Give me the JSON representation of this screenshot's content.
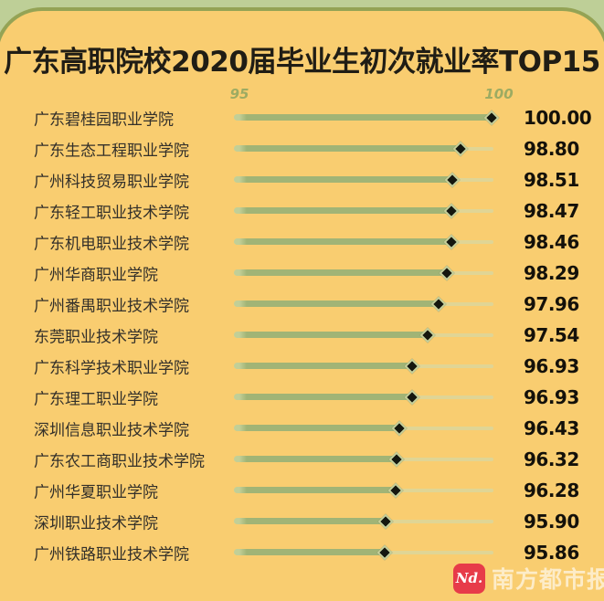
{
  "title": "广东高职院校2020届毕业生初次就业率TOP15",
  "axis": {
    "tick_low": "95",
    "tick_high": "100"
  },
  "chart_data": {
    "type": "bar",
    "orientation": "horizontal",
    "marker": "diamond",
    "title": "广东高职院校2020届毕业生初次就业率TOP15",
    "xlabel": "",
    "ylabel": "",
    "ticks": [
      95,
      100
    ],
    "implied_axis_min": 90,
    "implied_axis_max": 100,
    "grid": false,
    "legend": false,
    "categories": [
      "广东碧桂园职业学院",
      "广东生态工程职业学院",
      "广州科技贸易职业学院",
      "广东轻工职业技术学院",
      "广东机电职业技术学院",
      "广州华商职业学院",
      "广州番禺职业技术学院",
      "东莞职业技术学院",
      "广东科学技术职业学院",
      "广东理工职业学院",
      "深圳信息职业技术学院",
      "广东农工商职业技术学院",
      "广州华夏职业学院",
      "深圳职业技术学院",
      "广州铁路职业技术学院"
    ],
    "values": [
      100.0,
      98.8,
      98.51,
      98.47,
      98.46,
      98.29,
      97.96,
      97.54,
      96.93,
      96.93,
      96.43,
      96.32,
      96.28,
      95.9,
      95.86
    ],
    "value_labels": [
      "100.00",
      "98.80",
      "98.51",
      "98.47",
      "98.46",
      "98.29",
      "97.96",
      "97.54",
      "96.93",
      "96.93",
      "96.43",
      "96.32",
      "96.28",
      "95.90",
      "95.86"
    ]
  },
  "footer": {
    "logo_text": "Nd.",
    "brand_name": "南方都市报"
  },
  "colors": {
    "background_green": "#becf97",
    "card_yellow": "#f9cd70",
    "card_border_olive": "#94a355",
    "bar_green": "#a1b476",
    "track": "#e0d595",
    "diamond_black": "#15170f",
    "diamond_ring": "#c9d29b",
    "tick_green": "#9dab62",
    "brand_red": "#e73b49"
  }
}
